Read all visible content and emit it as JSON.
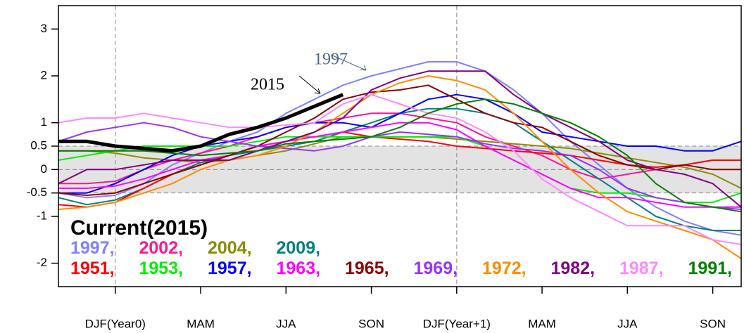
{
  "chart_data": {
    "type": "line",
    "title": "Current(2015)",
    "legend_separator": ",",
    "x": [
      -2,
      -1,
      0,
      1,
      2,
      3,
      4,
      5,
      6,
      7,
      8,
      9,
      10,
      11,
      12,
      13,
      14,
      15,
      16,
      17,
      18,
      19,
      20,
      21,
      22
    ],
    "xlim": [
      -2,
      22
    ],
    "xticks": [
      {
        "value": 0,
        "label": "DJF(Year0)"
      },
      {
        "value": 3,
        "label": "MAM"
      },
      {
        "value": 6,
        "label": "JJA"
      },
      {
        "value": 9,
        "label": "SON"
      },
      {
        "value": 12,
        "label": "DJF(Year+1)"
      },
      {
        "value": 15,
        "label": "MAM"
      },
      {
        "value": 18,
        "label": "JJA"
      },
      {
        "value": 21,
        "label": "SON"
      }
    ],
    "ylim": [
      -2.5,
      3.5
    ],
    "yticks": [
      -2,
      -1,
      -0.5,
      0,
      0.5,
      1,
      2,
      3
    ],
    "band": [
      -0.5,
      0.5
    ],
    "hlines": [
      -0.5,
      0,
      0.5
    ],
    "vlines": [
      0,
      12
    ],
    "annotations": [
      {
        "text": "1997",
        "color": "#4a6785"
      },
      {
        "text": "2015",
        "color": "#000000"
      }
    ],
    "series": [
      {
        "name": "1997",
        "color": "#8080ff",
        "values": [
          -0.5,
          -0.6,
          -0.55,
          -0.3,
          0.1,
          0.35,
          0.6,
          0.8,
          1.2,
          1.5,
          1.8,
          2.0,
          2.15,
          2.3,
          2.3,
          2.1,
          1.7,
          1.2,
          0.6,
          0.1,
          -0.4,
          -0.8,
          -1.1,
          -1.3,
          -1.4
        ]
      },
      {
        "name": "2002",
        "color": "#ff1493",
        "values": [
          -0.3,
          -0.3,
          -0.25,
          0,
          0.2,
          0.35,
          0.5,
          0.7,
          0.9,
          1.0,
          1.1,
          1.2,
          1.2,
          1.1,
          1.0,
          0.7,
          0.5,
          0.3,
          0,
          -0.2,
          -0.1,
          0,
          0.1,
          0.2,
          0.2
        ]
      },
      {
        "name": "2004",
        "color": "#8b8b00",
        "values": [
          0.4,
          0.4,
          0.35,
          0.25,
          0.2,
          0.15,
          0.2,
          0.3,
          0.4,
          0.55,
          0.7,
          0.7,
          0.7,
          0.7,
          0.65,
          0.6,
          0.55,
          0.5,
          0.45,
          0.35,
          0.25,
          0.15,
          0.05,
          -0.1,
          -0.4
        ]
      },
      {
        "name": "2009",
        "color": "#008080",
        "values": [
          -0.6,
          -0.75,
          -0.65,
          -0.4,
          -0.1,
          0.15,
          0.3,
          0.4,
          0.5,
          0.6,
          0.8,
          1.0,
          1.2,
          1.3,
          1.3,
          1.2,
          1.0,
          0.6,
          0.2,
          -0.2,
          -0.6,
          -1.0,
          -1.2,
          -1.3,
          -1.3
        ]
      },
      {
        "name": "1951",
        "color": "#ff0000",
        "values": [
          -0.75,
          -0.8,
          -0.7,
          -0.4,
          -0.1,
          0.1,
          0.3,
          0.5,
          0.6,
          0.7,
          0.8,
          0.7,
          0.65,
          0.6,
          0.5,
          0.45,
          0.4,
          0.35,
          0.3,
          0.2,
          0.1,
          0.05,
          0.1,
          0.2,
          0.2
        ]
      },
      {
        "name": "1953",
        "color": "#00ee00",
        "values": [
          0.2,
          0.3,
          0.4,
          0.5,
          0.5,
          0.5,
          0.5,
          0.6,
          0.7,
          0.7,
          0.7,
          0.7,
          0.7,
          0.7,
          0.7,
          0.5,
          0.2,
          -0.1,
          -0.4,
          -0.5,
          -0.5,
          -0.6,
          -0.7,
          -0.7,
          -0.5
        ]
      },
      {
        "name": "1957",
        "color": "#0000ff",
        "values": [
          -0.5,
          -0.5,
          -0.3,
          0,
          0.3,
          0.5,
          0.6,
          0.7,
          0.9,
          1.0,
          1.0,
          0.9,
          1.2,
          1.5,
          1.6,
          1.5,
          1.2,
          0.8,
          0.7,
          0.6,
          0.5,
          0.5,
          0.4,
          0.4,
          0.6
        ]
      },
      {
        "name": "1963",
        "color": "#ff00ff",
        "values": [
          -0.4,
          -0.4,
          -0.35,
          -0.2,
          0,
          0.2,
          0.3,
          0.5,
          0.6,
          0.7,
          0.8,
          0.9,
          1.0,
          1.0,
          0.85,
          0.5,
          0.2,
          -0.1,
          -0.4,
          -0.6,
          -0.6,
          -0.7,
          -0.8,
          -0.8,
          -0.8
        ]
      },
      {
        "name": "1965",
        "color": "#8b0000",
        "values": [
          -0.5,
          -0.55,
          -0.5,
          -0.3,
          -0.1,
          0.1,
          0.3,
          0.5,
          0.8,
          1.1,
          1.5,
          1.65,
          1.7,
          1.8,
          1.5,
          1.2,
          1.0,
          0.9,
          0.6,
          0.3,
          0.1,
          0,
          0.1,
          0,
          0
        ]
      },
      {
        "name": "1969",
        "color": "#9932ff",
        "values": [
          0.6,
          0.8,
          0.9,
          1.0,
          0.9,
          0.7,
          0.6,
          0.5,
          0.45,
          0.4,
          0.5,
          0.7,
          0.8,
          0.75,
          0.7,
          0.55,
          0.45,
          0.4,
          0.3,
          0.0,
          -0.4,
          -0.6,
          -0.7,
          -0.8,
          -0.85
        ]
      },
      {
        "name": "1972",
        "color": "#ff8c00",
        "values": [
          -0.85,
          -0.8,
          -0.7,
          -0.5,
          -0.3,
          0,
          0.2,
          0.3,
          0.5,
          0.8,
          1.2,
          1.6,
          1.85,
          2.0,
          1.9,
          1.7,
          1.2,
          0.6,
          0.0,
          -0.5,
          -0.9,
          -1.1,
          -1.3,
          -1.5,
          -1.9
        ]
      },
      {
        "name": "1982",
        "color": "#800080",
        "values": [
          -0.3,
          0,
          0,
          0.1,
          0.2,
          0.2,
          0.2,
          0.4,
          0.6,
          0.8,
          1.1,
          1.7,
          1.95,
          2.1,
          2.1,
          2.1,
          1.6,
          1.2,
          0.9,
          0.6,
          0.2,
          0.0,
          -0.1,
          -0.3,
          -0.8
        ]
      },
      {
        "name": "1987",
        "color": "#ff88ff",
        "values": [
          1.0,
          1.1,
          1.1,
          1.2,
          1.1,
          1.0,
          0.9,
          0.9,
          0.95,
          1.0,
          1.4,
          1.6,
          1.4,
          1.2,
          1.1,
          0.8,
          0.4,
          -0.2,
          -0.6,
          -0.9,
          -1.2,
          -1.2,
          -1.2,
          -1.5,
          -1.6
        ]
      },
      {
        "name": "1991",
        "color": "#008000",
        "values": [
          0.4,
          0.4,
          0.4,
          0.4,
          0.35,
          0.3,
          0.35,
          0.4,
          0.55,
          0.6,
          0.65,
          0.7,
          0.9,
          1.2,
          1.4,
          1.5,
          1.4,
          1.2,
          1.0,
          0.7,
          0.3,
          -0.3,
          -0.7,
          -0.8,
          -0.9
        ]
      },
      {
        "name": "2015",
        "color": "#000000",
        "line_width": 5,
        "values": [
          0.6,
          0.6,
          0.5,
          0.45,
          0.4,
          0.5,
          0.75,
          0.9,
          1.1,
          1.35,
          1.6,
          null,
          null,
          null,
          null,
          null,
          null,
          null,
          null,
          null,
          null,
          null,
          null,
          null,
          null
        ]
      }
    ]
  }
}
